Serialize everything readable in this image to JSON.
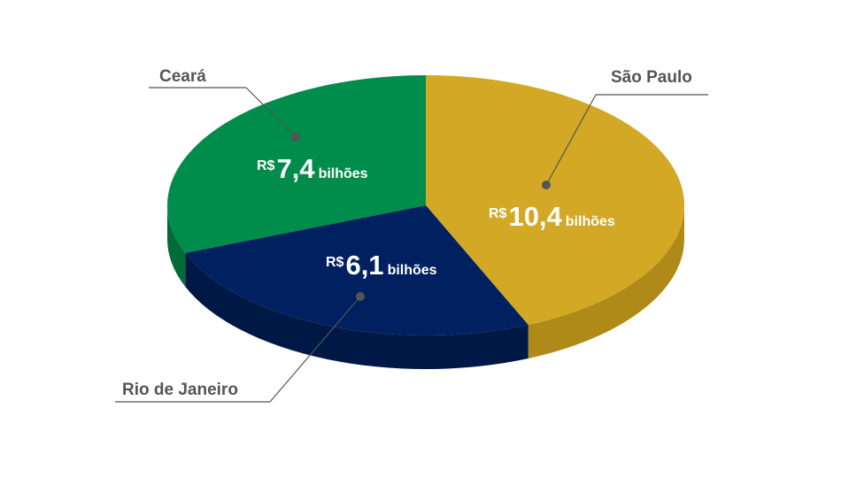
{
  "chart_data": {
    "type": "pie",
    "style": "3d",
    "title": "",
    "slices": [
      {
        "name": "São Paulo",
        "value": 10.4,
        "prefix": "R$",
        "value_label": "10,4",
        "unit": "bilhões",
        "color": "#d2a824",
        "side_color": "#b08a18"
      },
      {
        "name": "Rio de Janeiro",
        "value": 6.1,
        "prefix": "R$",
        "value_label": "6,1",
        "unit": "bilhões",
        "color": "#002060",
        "side_color": "#001845"
      },
      {
        "name": "Ceará",
        "value": 7.4,
        "prefix": "R$",
        "value_label": "7,4",
        "unit": "bilhões",
        "color": "#008c4a",
        "side_color": "#006b38"
      }
    ]
  }
}
